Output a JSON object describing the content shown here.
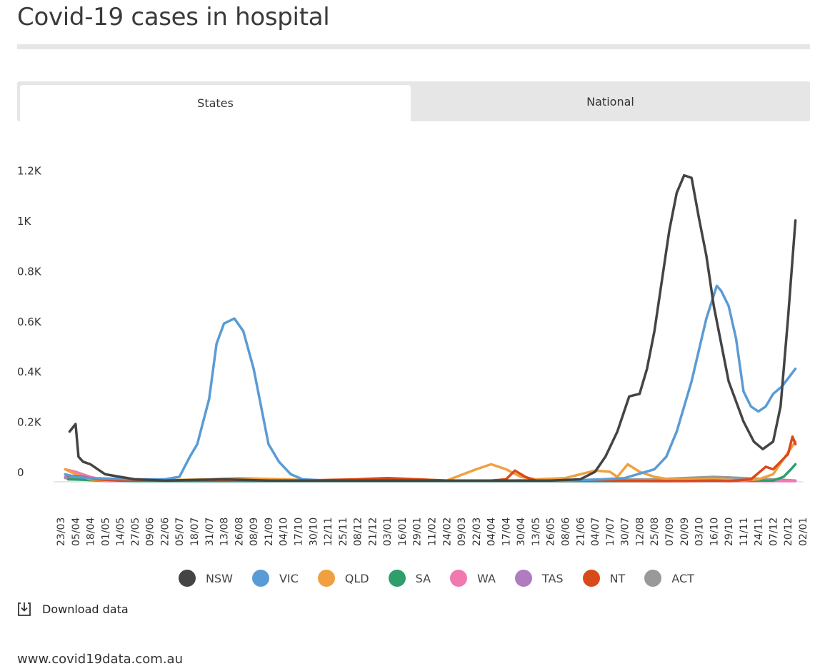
{
  "page": {
    "title": "Covid-19 cases in hospital",
    "footer": "www.covid19data.com.au"
  },
  "tabs": [
    {
      "label": "States",
      "active": true
    },
    {
      "label": "National",
      "active": false
    }
  ],
  "download": {
    "label": "Download data",
    "icon": "download-icon"
  },
  "chart_data": {
    "type": "line",
    "title": "Covid-19 cases in hospital",
    "xlabel": "",
    "ylabel": "",
    "ylim": [
      0,
      1250
    ],
    "grid": false,
    "legend_position": "bottom",
    "y_ticks": [
      {
        "value": 0,
        "label": "0"
      },
      {
        "value": 200,
        "label": "0.2K"
      },
      {
        "value": 400,
        "label": "0.4K"
      },
      {
        "value": 600,
        "label": "0.6K"
      },
      {
        "value": 800,
        "label": "0.8K"
      },
      {
        "value": 1000,
        "label": "1K"
      },
      {
        "value": 1200,
        "label": "1.2K"
      }
    ],
    "x_ticks": [
      "23/03",
      "05/04",
      "18/04",
      "01/05",
      "14/05",
      "27/05",
      "09/06",
      "22/06",
      "05/07",
      "18/07",
      "31/07",
      "13/08",
      "26/08",
      "08/09",
      "21/09",
      "04/10",
      "17/10",
      "30/10",
      "12/11",
      "25/11",
      "08/12",
      "21/12",
      "03/01",
      "16/01",
      "29/01",
      "11/02",
      "24/02",
      "09/03",
      "22/03",
      "04/04",
      "17/04",
      "30/04",
      "13/05",
      "26/05",
      "08/06",
      "21/06",
      "04/07",
      "17/07",
      "30/07",
      "12/08",
      "25/08",
      "07/09",
      "20/09",
      "03/10",
      "16/10",
      "29/10",
      "11/11",
      "24/11",
      "07/12",
      "20/12",
      "02/01"
    ],
    "series": [
      {
        "name": "NSW",
        "color": "#444444",
        "points": [
          [
            0.6,
            200
          ],
          [
            1.0,
            230
          ],
          [
            1.2,
            100
          ],
          [
            1.5,
            80
          ],
          [
            2,
            70
          ],
          [
            2.5,
            50
          ],
          [
            3,
            30
          ],
          [
            4,
            20
          ],
          [
            5,
            10
          ],
          [
            7,
            5
          ],
          [
            11,
            10
          ],
          [
            14,
            5
          ],
          [
            18,
            5
          ],
          [
            22,
            5
          ],
          [
            25,
            5
          ],
          [
            28,
            5
          ],
          [
            30,
            5
          ],
          [
            33,
            5
          ],
          [
            35,
            10
          ],
          [
            36,
            40
          ],
          [
            36.7,
            100
          ],
          [
            37.5,
            200
          ],
          [
            38.3,
            340
          ],
          [
            39,
            350
          ],
          [
            39.5,
            450
          ],
          [
            40,
            600
          ],
          [
            40.5,
            800
          ],
          [
            41,
            1000
          ],
          [
            41.5,
            1150
          ],
          [
            42,
            1220
          ],
          [
            42.5,
            1210
          ],
          [
            43,
            1050
          ],
          [
            43.5,
            900
          ],
          [
            44,
            700
          ],
          [
            44.5,
            550
          ],
          [
            45,
            400
          ],
          [
            45.5,
            320
          ],
          [
            46,
            240
          ],
          [
            46.7,
            160
          ],
          [
            47.3,
            130
          ],
          [
            48,
            160
          ],
          [
            48.5,
            300
          ],
          [
            49,
            650
          ],
          [
            49.5,
            1040
          ]
        ]
      },
      {
        "name": "VIC",
        "color": "#5b9bd5",
        "points": [
          [
            0.3,
            30
          ],
          [
            1,
            20
          ],
          [
            2,
            15
          ],
          [
            5,
            10
          ],
          [
            7,
            10
          ],
          [
            8,
            20
          ],
          [
            8.7,
            100
          ],
          [
            9.2,
            150
          ],
          [
            10,
            330
          ],
          [
            10.5,
            550
          ],
          [
            11,
            630
          ],
          [
            11.7,
            650
          ],
          [
            12.3,
            600
          ],
          [
            13,
            450
          ],
          [
            13.5,
            300
          ],
          [
            14,
            150
          ],
          [
            14.7,
            80
          ],
          [
            15.5,
            30
          ],
          [
            16.3,
            10
          ],
          [
            18,
            5
          ],
          [
            22,
            5
          ],
          [
            26,
            5
          ],
          [
            30,
            5
          ],
          [
            34,
            5
          ],
          [
            36.5,
            10
          ],
          [
            38,
            15
          ],
          [
            40,
            50
          ],
          [
            40.8,
            100
          ],
          [
            41.5,
            200
          ],
          [
            42.5,
            400
          ],
          [
            43.5,
            650
          ],
          [
            44.2,
            780
          ],
          [
            44.5,
            760
          ],
          [
            45,
            700
          ],
          [
            45.5,
            570
          ],
          [
            46,
            360
          ],
          [
            46.5,
            300
          ],
          [
            47,
            280
          ],
          [
            47.5,
            300
          ],
          [
            48,
            350
          ],
          [
            48.6,
            380
          ],
          [
            49.5,
            450
          ]
        ]
      },
      {
        "name": "QLD",
        "color": "#f0a040",
        "points": [
          [
            0.3,
            50
          ],
          [
            1,
            30
          ],
          [
            2,
            10
          ],
          [
            3,
            5
          ],
          [
            6,
            5
          ],
          [
            10,
            10
          ],
          [
            12,
            15
          ],
          [
            15,
            10
          ],
          [
            18,
            5
          ],
          [
            20,
            10
          ],
          [
            22,
            15
          ],
          [
            24,
            10
          ],
          [
            26,
            5
          ],
          [
            28,
            50
          ],
          [
            29,
            70
          ],
          [
            30,
            50
          ],
          [
            31,
            20
          ],
          [
            32,
            10
          ],
          [
            34,
            15
          ],
          [
            35,
            30
          ],
          [
            36,
            45
          ],
          [
            37,
            40
          ],
          [
            37.5,
            20
          ],
          [
            38.2,
            70
          ],
          [
            39,
            40
          ],
          [
            40,
            20
          ],
          [
            41,
            10
          ],
          [
            44,
            10
          ],
          [
            46,
            5
          ],
          [
            47,
            10
          ],
          [
            48,
            30
          ],
          [
            48.8,
            100
          ],
          [
            49.5,
            160
          ]
        ]
      },
      {
        "name": "SA",
        "color": "#2e9e6c",
        "points": [
          [
            0.5,
            10
          ],
          [
            5,
            3
          ],
          [
            20,
            3
          ],
          [
            40,
            3
          ],
          [
            48,
            5
          ],
          [
            48.7,
            20
          ],
          [
            49.2,
            50
          ],
          [
            49.5,
            70
          ]
        ]
      },
      {
        "name": "WA",
        "color": "#f07ab0",
        "points": [
          [
            0.3,
            50
          ],
          [
            1,
            40
          ],
          [
            2,
            20
          ],
          [
            3,
            5
          ],
          [
            10,
            3
          ],
          [
            40,
            3
          ],
          [
            49.5,
            3
          ]
        ]
      },
      {
        "name": "TAS",
        "color": "#b07cc0",
        "points": [
          [
            0.3,
            20
          ],
          [
            1,
            10
          ],
          [
            3,
            3
          ],
          [
            40,
            3
          ],
          [
            49.5,
            3
          ]
        ]
      },
      {
        "name": "NT",
        "color": "#d94a1a",
        "points": [
          [
            0.5,
            25
          ],
          [
            1.5,
            20
          ],
          [
            2.5,
            10
          ],
          [
            4,
            5
          ],
          [
            10,
            5
          ],
          [
            16,
            5
          ],
          [
            20,
            10
          ],
          [
            22,
            15
          ],
          [
            24,
            10
          ],
          [
            26,
            5
          ],
          [
            29,
            5
          ],
          [
            30,
            10
          ],
          [
            30.6,
            45
          ],
          [
            31.3,
            20
          ],
          [
            32,
            5
          ],
          [
            36,
            5
          ],
          [
            40,
            3
          ],
          [
            42,
            3
          ],
          [
            44,
            5
          ],
          [
            45,
            3
          ],
          [
            46.5,
            10
          ],
          [
            47.5,
            60
          ],
          [
            48,
            50
          ],
          [
            48.5,
            80
          ],
          [
            49,
            110
          ],
          [
            49.3,
            180
          ],
          [
            49.5,
            150
          ]
        ]
      },
      {
        "name": "ACT",
        "color": "#999999",
        "points": [
          [
            0.3,
            15
          ],
          [
            1,
            10
          ],
          [
            3,
            5
          ],
          [
            10,
            3
          ],
          [
            30,
            5
          ],
          [
            40,
            10
          ],
          [
            42,
            15
          ],
          [
            44,
            20
          ],
          [
            46,
            15
          ],
          [
            48,
            10
          ],
          [
            49.5,
            5
          ]
        ]
      }
    ]
  }
}
